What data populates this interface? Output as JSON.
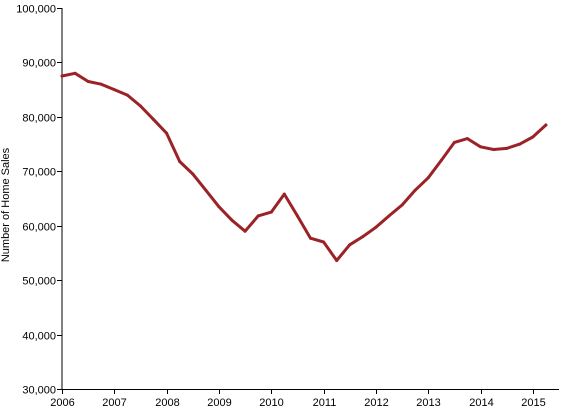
{
  "chart_data": {
    "type": "line",
    "title": "",
    "xlabel": "",
    "ylabel": "Number of Home Sales",
    "ylim": [
      30000,
      100000
    ],
    "y_ticks": [
      30000,
      40000,
      50000,
      60000,
      70000,
      80000,
      90000,
      100000
    ],
    "y_tick_labels": [
      "30,000",
      "40,000",
      "50,000",
      "60,000",
      "70,000",
      "80,000",
      "90,000",
      "100,000"
    ],
    "x_ticks": [
      2006,
      2007,
      2008,
      2009,
      2010,
      2011,
      2012,
      2013,
      2014,
      2015
    ],
    "x_tick_labels": [
      "2006",
      "2007",
      "2008",
      "2009",
      "2010",
      "2011",
      "2012",
      "2013",
      "2014",
      "2015"
    ],
    "xlim": [
      2006,
      2015.5
    ],
    "grid": false,
    "legend": "none",
    "series": [
      {
        "color": "#9b2226",
        "x": [
          2006.0,
          2006.25,
          2006.5,
          2006.75,
          2007.0,
          2007.25,
          2007.5,
          2007.75,
          2008.0,
          2008.25,
          2008.5,
          2008.75,
          2009.0,
          2009.25,
          2009.5,
          2009.75,
          2010.0,
          2010.25,
          2010.5,
          2010.75,
          2011.0,
          2011.25,
          2011.5,
          2011.75,
          2012.0,
          2012.25,
          2012.5,
          2012.75,
          2013.0,
          2013.25,
          2013.5,
          2013.75,
          2014.0,
          2014.25,
          2014.5,
          2014.75,
          2015.0,
          2015.25
        ],
        "values": [
          87500,
          88000,
          86500,
          86000,
          85000,
          84000,
          82000,
          79500,
          77000,
          71800,
          69500,
          66500,
          63500,
          61000,
          59000,
          61800,
          62500,
          65800,
          61800,
          57700,
          57000,
          53600,
          56500,
          58000,
          59700,
          61800,
          63800,
          66500,
          68800,
          72000,
          75300,
          76000,
          74500,
          74000,
          74200,
          75000,
          76300,
          78500
        ]
      }
    ]
  }
}
